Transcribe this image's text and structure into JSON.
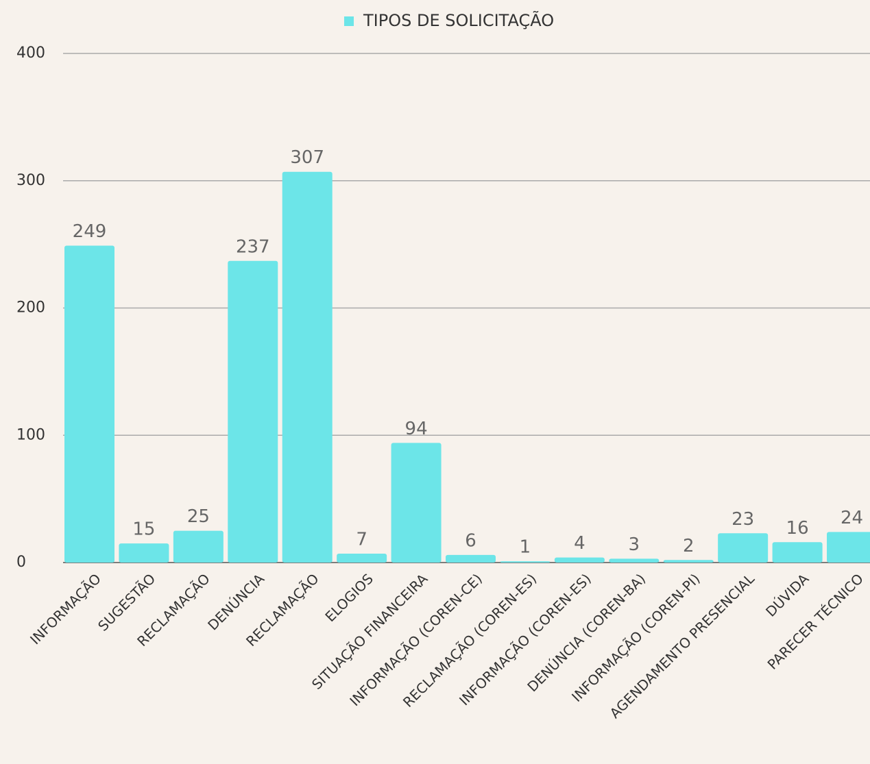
{
  "chart_data": {
    "type": "bar",
    "categories": [
      "INFORMAÇÃO",
      "SUGESTÃO",
      "RECLAMAÇÃO",
      "DENÚNCIA",
      "RECLAMAÇÃO",
      "ELOGIOS",
      "SITUAÇÃO FINANCEIRA",
      "INFORMAÇÃO (COREN-CE)",
      "RECLAMAÇÃO (COREN-ES)",
      "INFORMAÇÃO (COREN-ES)",
      "DENÚNCIA (COREN-BA)",
      "INFORMAÇÃO (COREN-PI)",
      "AGENDAMENTO PRESENCIAL",
      "DÚVIDA",
      "PARECER TÉCNICO"
    ],
    "series": [
      {
        "name": "TIPOS DE SOLICITAÇÃO",
        "color": "#6ce5e8",
        "values": [
          249,
          15,
          25,
          237,
          307,
          7,
          94,
          6,
          1,
          4,
          3,
          2,
          23,
          16,
          24
        ]
      }
    ],
    "ylim": [
      0,
      400
    ],
    "yticks": [
      0,
      100,
      200,
      300,
      400
    ],
    "grid": true,
    "legend": "top"
  }
}
